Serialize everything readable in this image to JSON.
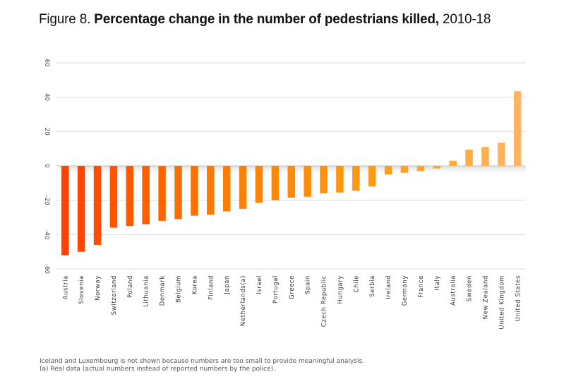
{
  "title": {
    "prefix": "Figure 8. ",
    "bold": "Percentage change in the number of pedestrians killed,",
    "suffix": " 2010-18"
  },
  "chart_data": {
    "type": "bar",
    "title": "Figure 8. Percentage change in the number of pedestrians killed, 2010-18",
    "xlabel": "",
    "ylabel": "",
    "ylim": [
      -60,
      60
    ],
    "yticks": [
      60,
      40,
      20,
      0,
      -20,
      -40,
      -60
    ],
    "grid": true,
    "legend": "none",
    "categories": [
      "Austria",
      "Slovenia",
      "Norway",
      "Switzerland",
      "Poland",
      "Lithuania",
      "Denmark",
      "Belgium",
      "Korea",
      "Finland",
      "Japan",
      "Netherlands(a)",
      "Israel",
      "Portugal",
      "Greece",
      "Spain",
      "Czech Republic",
      "Hungary",
      "Chile",
      "Serbia",
      "Ireland",
      "Germany",
      "France",
      "Italy",
      "Australia",
      "Sweden",
      "New Zealand",
      "United Kingdom",
      "United States"
    ],
    "values": [
      -52,
      -50,
      -46,
      -36,
      -35,
      -34,
      -32,
      -31,
      -29,
      -28.5,
      -26.5,
      -25,
      -21.5,
      -20,
      -18.5,
      -18,
      -16,
      -15.5,
      -14.5,
      -12,
      -5,
      -4,
      -3,
      -1.5,
      3,
      9.5,
      11,
      13.5,
      43.5
    ],
    "color_scale": [
      "#ff4000",
      "#ff7a00",
      "#ff9a10",
      "#ffb560"
    ]
  },
  "footnotes": [
    "Iceland and Luxembourg is not shown because numbers are too small to provide meaningful analysis.",
    "(a) Real data (actual numbers instead of reported numbers by the police)."
  ]
}
